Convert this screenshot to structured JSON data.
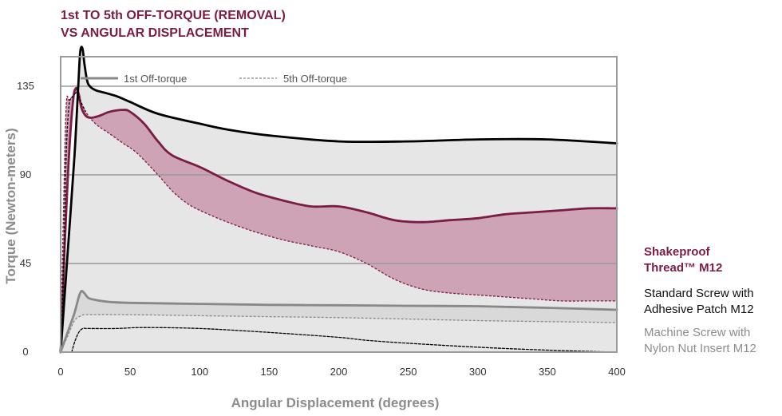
{
  "chart_data": {
    "type": "line",
    "title_lines": [
      "1st TO 5th OFF-TORQUE (REMOVAL)",
      "VS ANGULAR DISPLACEMENT"
    ],
    "xlabel": "Angular Displacement (degrees)",
    "ylabel": "Torque (Newton-meters)",
    "xlim": [
      0,
      400
    ],
    "ylim": [
      0,
      150
    ],
    "x_ticks": [
      0,
      50,
      100,
      150,
      200,
      250,
      300,
      350,
      400
    ],
    "y_ticks": [
      0,
      45,
      90,
      135
    ],
    "y_gridlines": [
      45,
      90,
      135
    ],
    "legend": {
      "placement": "top-left",
      "entries": [
        {
          "label": "1st Off-torque",
          "style": "solid"
        },
        {
          "label": "5th Off-torque",
          "style": "dashed"
        }
      ]
    },
    "products": [
      {
        "name_lines": [
          "Shakeproof",
          "Thread™ M12"
        ],
        "color": "#7b1c45",
        "label_bold": true,
        "band_color": "#cfa3b6",
        "first": {
          "x": [
            0,
            3,
            6,
            9,
            11,
            13,
            15,
            18,
            22,
            28,
            35,
            45,
            50,
            60,
            70,
            80,
            100,
            120,
            140,
            160,
            180,
            200,
            220,
            240,
            260,
            280,
            300,
            320,
            340,
            360,
            380,
            400
          ],
          "y": [
            0,
            55,
            100,
            128,
            134,
            131,
            124,
            120,
            119,
            120,
            122,
            123,
            122,
            116,
            107,
            100,
            94,
            87,
            81,
            77,
            74,
            74,
            71,
            67,
            66,
            67,
            68,
            70,
            71,
            72,
            73,
            73
          ]
        },
        "fifth": {
          "x": [
            0,
            2,
            4,
            6,
            9,
            11,
            14,
            18,
            25,
            35,
            45,
            55,
            70,
            80,
            90,
            100,
            120,
            140,
            160,
            180,
            200,
            220,
            240,
            260,
            280,
            300,
            320,
            340,
            360,
            380,
            400
          ],
          "y": [
            0,
            70,
            125,
            128,
            130,
            132,
            128,
            122,
            116,
            111,
            106,
            101,
            90,
            82,
            76,
            72,
            66,
            61,
            57,
            54,
            51,
            45,
            37,
            32,
            30,
            29,
            28,
            27,
            26,
            26,
            26
          ]
        }
      },
      {
        "name_lines": [
          "Standard Screw with",
          "Adhesive Patch M12"
        ],
        "color": "#000000",
        "label_bold": false,
        "band_color": "#e6e6e7",
        "first": {
          "x": [
            0,
            5,
            10,
            13,
            14,
            15,
            16,
            17,
            19,
            21,
            25,
            30,
            40,
            50,
            70,
            100,
            120,
            150,
            200,
            250,
            300,
            350,
            400
          ],
          "y": [
            0,
            50,
            100,
            140,
            152,
            155,
            153,
            147,
            138,
            135,
            133,
            132,
            130,
            127,
            121,
            116,
            113,
            110,
            107,
            107,
            108,
            108,
            106
          ]
        },
        "fifth": {
          "x": [
            0,
            2,
            4,
            6,
            8,
            10,
            12,
            14,
            18
          ],
          "y": [
            0,
            40,
            100,
            125,
            129,
            131,
            132,
            128,
            122
          ]
        }
      },
      {
        "name_lines": [
          "Machine Screw with",
          "Nylon Nut Insert M12"
        ],
        "color": "#888888",
        "label_bold": false,
        "band_color": "#d9d9d9",
        "first": {
          "x": [
            0,
            5,
            10,
            13,
            15,
            17,
            20,
            25,
            35,
            50,
            100,
            150,
            200,
            250,
            300,
            350,
            400
          ],
          "y": [
            0,
            10,
            20,
            28,
            31,
            30,
            27.5,
            26.5,
            25.5,
            25,
            24.5,
            24,
            23.8,
            23.5,
            23.3,
            22.5,
            21.5
          ]
        },
        "fifth": {
          "x": [
            0,
            5,
            10,
            15,
            20,
            50,
            100,
            150,
            200,
            250,
            300,
            350,
            400
          ],
          "y": [
            0,
            8,
            16,
            18.5,
            19,
            19,
            18.5,
            18,
            17.5,
            16.8,
            16,
            15.5,
            15
          ]
        }
      },
      {
        "name_lines": [],
        "color": "#000000",
        "label_bold": false,
        "band_color": "",
        "first": {
          "x": [
            8,
            10,
            13,
            16,
            20,
            40,
            60,
            100,
            150,
            200,
            220,
            250,
            300,
            350,
            400
          ],
          "y": [
            0,
            5,
            10,
            12,
            12,
            12,
            12.5,
            12,
            10,
            7.5,
            6,
            4.5,
            2.5,
            1,
            0
          ]
        },
        "fifth": {
          "x": [],
          "y": []
        }
      }
    ]
  }
}
